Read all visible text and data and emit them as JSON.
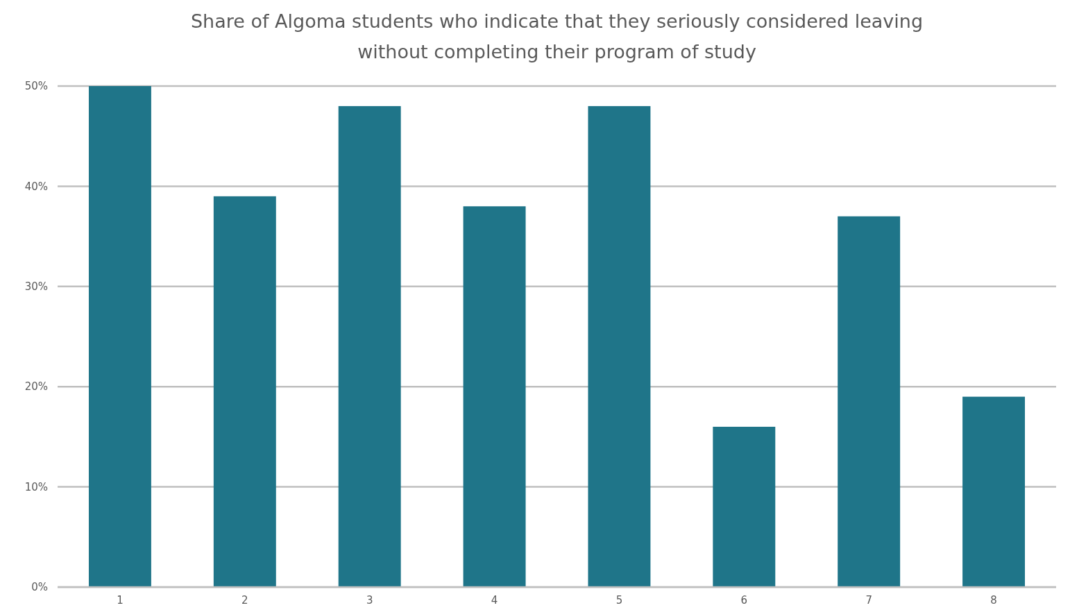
{
  "chart_data": {
    "type": "bar",
    "title": "Share of Algoma students who indicate that they seriously considered leaving without completing their program of study",
    "categories": [
      "1",
      "2",
      "3",
      "4",
      "5",
      "6",
      "7",
      "8"
    ],
    "values": [
      50,
      39,
      48,
      38,
      48,
      16,
      37,
      19
    ],
    "color": "#1f7589",
    "ylim": [
      0,
      50
    ],
    "yticks": [
      {
        "value": 0,
        "label": "0%"
      },
      {
        "value": 10,
        "label": "10%"
      },
      {
        "value": 20,
        "label": "20%"
      },
      {
        "value": 30,
        "label": "30%"
      },
      {
        "value": 40,
        "label": "40%"
      },
      {
        "value": 50,
        "label": "50%"
      }
    ],
    "grid": "y"
  }
}
